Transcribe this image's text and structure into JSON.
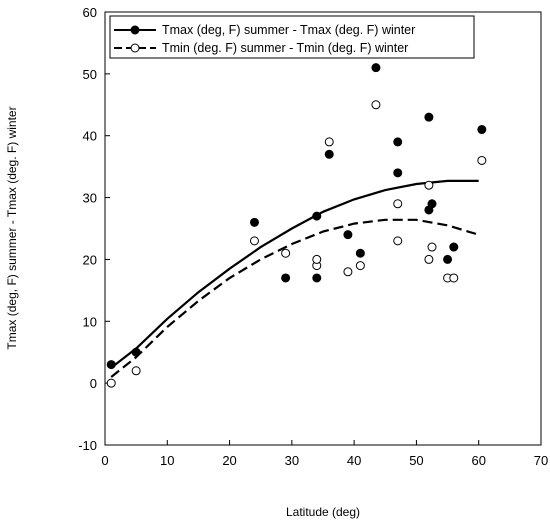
{
  "chart_data": {
    "type": "scatter",
    "xlabel": "Latitude (deg)",
    "ylabel": "Tmax (deg, F) summer - Tmax (deg. F) winter",
    "xlim": [
      0,
      70
    ],
    "ylim": [
      -10,
      60
    ],
    "xticks": [
      0,
      10,
      20,
      30,
      40,
      50,
      60,
      70
    ],
    "yticks": [
      -10,
      0,
      10,
      20,
      30,
      40,
      50,
      60
    ],
    "grid": false,
    "legend_position": "top",
    "series": [
      {
        "name": "Tmax (deg, F) summer - Tmax (deg. F) winter",
        "marker": "filled-circle",
        "line": "solid",
        "color": "#000000",
        "points": [
          [
            1,
            3
          ],
          [
            5,
            5
          ],
          [
            24,
            26
          ],
          [
            29,
            17
          ],
          [
            34,
            27
          ],
          [
            34,
            17
          ],
          [
            36,
            37
          ],
          [
            39,
            24
          ],
          [
            41,
            21
          ],
          [
            43.5,
            51
          ],
          [
            47,
            39
          ],
          [
            47,
            34
          ],
          [
            52,
            28
          ],
          [
            52,
            43
          ],
          [
            52.5,
            29
          ],
          [
            55,
            20
          ],
          [
            56,
            22
          ],
          [
            60.5,
            41
          ]
        ],
        "fit": [
          [
            1,
            2.5
          ],
          [
            5,
            5.6
          ],
          [
            10,
            10.4
          ],
          [
            15,
            14.7
          ],
          [
            20,
            18.5
          ],
          [
            25,
            22
          ],
          [
            30,
            25
          ],
          [
            35,
            27.7
          ],
          [
            40,
            29.7
          ],
          [
            45,
            31.2
          ],
          [
            50,
            32.2
          ],
          [
            55,
            32.7
          ],
          [
            60,
            32.7
          ]
        ]
      },
      {
        "name": "Tmin (deg. F) summer - Tmin (deg. F) winter",
        "marker": "open-circle",
        "line": "dashed",
        "color": "#000000",
        "points": [
          [
            1,
            0
          ],
          [
            5,
            2
          ],
          [
            24,
            23
          ],
          [
            29,
            21
          ],
          [
            34,
            19
          ],
          [
            34,
            20
          ],
          [
            36,
            39
          ],
          [
            39,
            18
          ],
          [
            41,
            19
          ],
          [
            43.5,
            45
          ],
          [
            47,
            29
          ],
          [
            47,
            23
          ],
          [
            52,
            20
          ],
          [
            52,
            32
          ],
          [
            52.5,
            22
          ],
          [
            55,
            17
          ],
          [
            56,
            17
          ],
          [
            60.5,
            36
          ]
        ],
        "fit": [
          [
            1,
            1
          ],
          [
            5,
            4.2
          ],
          [
            10,
            9.1
          ],
          [
            15,
            13.3
          ],
          [
            20,
            17
          ],
          [
            25,
            20
          ],
          [
            30,
            22.5
          ],
          [
            35,
            24.5
          ],
          [
            40,
            25.8
          ],
          [
            45,
            26.4
          ],
          [
            50,
            26.4
          ],
          [
            55,
            25.5
          ],
          [
            60,
            24
          ]
        ]
      }
    ]
  }
}
